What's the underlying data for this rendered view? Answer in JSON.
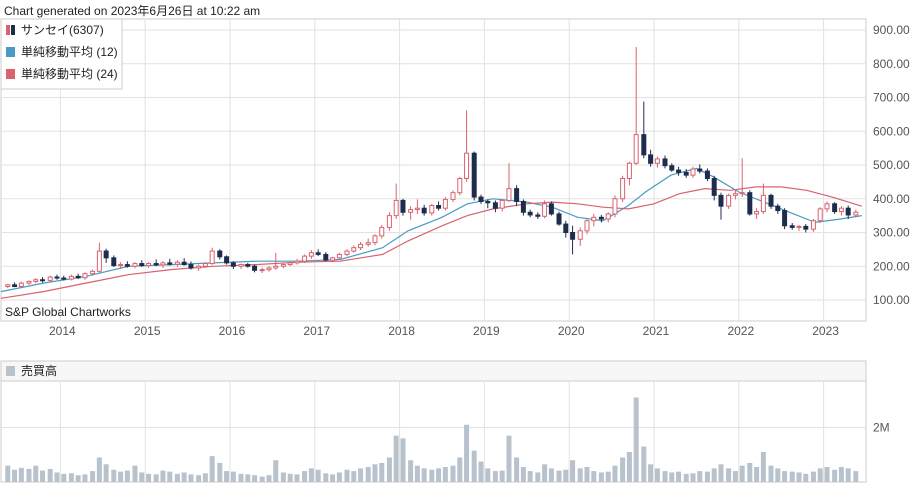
{
  "header": {
    "generated": "Chart generated on 2023年6月26日 at 10:22 am"
  },
  "credit": "S&P Global Chartworks",
  "colors": {
    "up": "#d9626f",
    "down": "#1f2d4d",
    "ma12": "#4a9bc4",
    "ma24": "#d9626f",
    "volume": "#b8c2cc",
    "grid": "#e2e2e2",
    "frame": "#cccccc"
  },
  "chart_data": [
    {
      "type": "candlestick",
      "legend_placement": "top-left",
      "legend": [
        {
          "name": "サンセイ(6307)",
          "swatch": "candle"
        },
        {
          "name": "単純移動平均 (12)",
          "swatch": "ma12"
        },
        {
          "name": "単純移動平均 (24)",
          "swatch": "ma24"
        }
      ],
      "ylim": [
        100,
        900
      ],
      "y_ticks": [
        "900.00",
        "800.00",
        "700.00",
        "600.00",
        "500.00",
        "400.00",
        "300.00",
        "200.00",
        "100.00"
      ],
      "x_ticks": [
        "2014",
        "2015",
        "2016",
        "2017",
        "2018",
        "2019",
        "2020",
        "2021",
        "2022",
        "2023"
      ],
      "x_range": [
        2013.3,
        2023.5
      ],
      "candles": [
        [
          2013.38,
          140,
          148,
          135,
          145
        ],
        [
          2013.46,
          145,
          152,
          138,
          140
        ],
        [
          2013.54,
          140,
          155,
          136,
          150
        ],
        [
          2013.63,
          150,
          158,
          145,
          155
        ],
        [
          2013.71,
          155,
          165,
          150,
          160
        ],
        [
          2013.79,
          160,
          168,
          152,
          158
        ],
        [
          2013.88,
          158,
          172,
          155,
          168
        ],
        [
          2013.96,
          168,
          175,
          160,
          165
        ],
        [
          2014.04,
          165,
          172,
          158,
          162
        ],
        [
          2014.13,
          162,
          175,
          158,
          170
        ],
        [
          2014.21,
          170,
          178,
          162,
          166
        ],
        [
          2014.29,
          166,
          182,
          160,
          178
        ],
        [
          2014.38,
          178,
          190,
          172,
          185
        ],
        [
          2014.46,
          185,
          270,
          180,
          245
        ],
        [
          2014.54,
          245,
          252,
          210,
          225
        ],
        [
          2014.63,
          225,
          232,
          198,
          202
        ],
        [
          2014.71,
          202,
          212,
          192,
          205
        ],
        [
          2014.79,
          205,
          215,
          196,
          200
        ],
        [
          2014.88,
          200,
          212,
          194,
          208
        ],
        [
          2014.96,
          208,
          218,
          198,
          202
        ],
        [
          2015.04,
          202,
          212,
          195,
          208
        ],
        [
          2015.13,
          208,
          220,
          200,
          204
        ],
        [
          2015.21,
          204,
          215,
          195,
          210
        ],
        [
          2015.29,
          210,
          222,
          202,
          206
        ],
        [
          2015.38,
          206,
          218,
          198,
          212
        ],
        [
          2015.46,
          212,
          224,
          202,
          205
        ],
        [
          2015.54,
          205,
          214,
          190,
          195
        ],
        [
          2015.63,
          195,
          205,
          186,
          200
        ],
        [
          2015.71,
          200,
          212,
          195,
          208
        ],
        [
          2015.79,
          208,
          255,
          204,
          245
        ],
        [
          2015.88,
          245,
          250,
          220,
          228
        ],
        [
          2015.96,
          228,
          232,
          205,
          210
        ],
        [
          2016.04,
          210,
          215,
          192,
          200
        ],
        [
          2016.13,
          200,
          208,
          192,
          205
        ],
        [
          2016.21,
          205,
          210,
          196,
          200
        ],
        [
          2016.29,
          200,
          205,
          182,
          188
        ],
        [
          2016.38,
          188,
          196,
          180,
          190
        ],
        [
          2016.46,
          190,
          200,
          184,
          195
        ],
        [
          2016.54,
          195,
          240,
          190,
          200
        ],
        [
          2016.63,
          200,
          208,
          194,
          205
        ],
        [
          2016.71,
          205,
          214,
          200,
          210
        ],
        [
          2016.79,
          210,
          222,
          205,
          215
        ],
        [
          2016.88,
          215,
          235,
          210,
          230
        ],
        [
          2016.96,
          230,
          248,
          222,
          240
        ],
        [
          2017.04,
          240,
          250,
          230,
          235
        ],
        [
          2017.13,
          235,
          242,
          215,
          218
        ],
        [
          2017.21,
          218,
          228,
          212,
          225
        ],
        [
          2017.29,
          225,
          240,
          220,
          235
        ],
        [
          2017.38,
          235,
          250,
          230,
          245
        ],
        [
          2017.46,
          245,
          262,
          240,
          255
        ],
        [
          2017.54,
          255,
          272,
          248,
          265
        ],
        [
          2017.63,
          265,
          282,
          258,
          270
        ],
        [
          2017.71,
          270,
          295,
          262,
          290
        ],
        [
          2017.79,
          290,
          322,
          282,
          315
        ],
        [
          2017.88,
          315,
          360,
          305,
          350
        ],
        [
          2017.96,
          350,
          445,
          340,
          395
        ],
        [
          2018.04,
          395,
          400,
          350,
          360
        ],
        [
          2018.13,
          360,
          378,
          338,
          368
        ],
        [
          2018.21,
          368,
          398,
          355,
          372
        ],
        [
          2018.29,
          372,
          382,
          350,
          358
        ],
        [
          2018.38,
          358,
          385,
          350,
          380
        ],
        [
          2018.46,
          380,
          392,
          365,
          372
        ],
        [
          2018.54,
          372,
          405,
          365,
          398
        ],
        [
          2018.63,
          398,
          425,
          390,
          418
        ],
        [
          2018.71,
          418,
          465,
          410,
          460
        ],
        [
          2018.79,
          460,
          662,
          450,
          535
        ],
        [
          2018.88,
          535,
          540,
          395,
          405
        ],
        [
          2018.96,
          405,
          412,
          385,
          392
        ],
        [
          2019.04,
          392,
          398,
          372,
          388
        ],
        [
          2019.13,
          388,
          395,
          360,
          372
        ],
        [
          2019.21,
          372,
          400,
          362,
          395
        ],
        [
          2019.29,
          395,
          505,
          390,
          430
        ],
        [
          2019.38,
          430,
          440,
          378,
          392
        ],
        [
          2019.46,
          392,
          398,
          350,
          360
        ],
        [
          2019.54,
          360,
          368,
          345,
          352
        ],
        [
          2019.63,
          352,
          360,
          340,
          348
        ],
        [
          2019.71,
          348,
          395,
          342,
          385
        ],
        [
          2019.79,
          385,
          392,
          350,
          355
        ],
        [
          2019.88,
          355,
          362,
          320,
          325
        ],
        [
          2019.96,
          325,
          335,
          285,
          300
        ],
        [
          2020.04,
          300,
          320,
          235,
          280
        ],
        [
          2020.13,
          280,
          315,
          260,
          305
        ],
        [
          2020.21,
          305,
          340,
          295,
          335
        ],
        [
          2020.29,
          335,
          355,
          318,
          345
        ],
        [
          2020.38,
          345,
          352,
          330,
          340
        ],
        [
          2020.46,
          340,
          360,
          330,
          355
        ],
        [
          2020.54,
          355,
          410,
          345,
          400
        ],
        [
          2020.63,
          400,
          468,
          390,
          460
        ],
        [
          2020.71,
          460,
          510,
          440,
          505
        ],
        [
          2020.79,
          505,
          850,
          500,
          590
        ],
        [
          2020.88,
          590,
          688,
          520,
          530
        ],
        [
          2020.96,
          530,
          545,
          495,
          505
        ],
        [
          2021.04,
          505,
          525,
          492,
          518
        ],
        [
          2021.13,
          518,
          528,
          490,
          498
        ],
        [
          2021.21,
          498,
          505,
          480,
          485
        ],
        [
          2021.29,
          485,
          495,
          468,
          478
        ],
        [
          2021.38,
          478,
          488,
          462,
          470
        ],
        [
          2021.46,
          470,
          495,
          462,
          488
        ],
        [
          2021.54,
          488,
          502,
          475,
          482
        ],
        [
          2021.63,
          482,
          490,
          452,
          460
        ],
        [
          2021.71,
          460,
          468,
          395,
          410
        ],
        [
          2021.79,
          410,
          418,
          338,
          378
        ],
        [
          2021.88,
          378,
          415,
          370,
          410
        ],
        [
          2021.96,
          410,
          425,
          398,
          415
        ],
        [
          2022.04,
          415,
          520,
          405,
          418
        ],
        [
          2022.13,
          418,
          425,
          350,
          355
        ],
        [
          2022.21,
          355,
          372,
          340,
          362
        ],
        [
          2022.29,
          362,
          445,
          355,
          410
        ],
        [
          2022.38,
          410,
          415,
          370,
          378
        ],
        [
          2022.46,
          378,
          385,
          355,
          365
        ],
        [
          2022.54,
          365,
          372,
          310,
          320
        ],
        [
          2022.63,
          320,
          328,
          308,
          315
        ],
        [
          2022.71,
          315,
          322,
          305,
          318
        ],
        [
          2022.79,
          318,
          325,
          300,
          310
        ],
        [
          2022.88,
          310,
          340,
          302,
          335
        ],
        [
          2022.96,
          335,
          375,
          328,
          370
        ],
        [
          2023.04,
          370,
          392,
          360,
          385
        ],
        [
          2023.13,
          385,
          390,
          355,
          362
        ],
        [
          2023.21,
          362,
          378,
          350,
          372
        ],
        [
          2023.29,
          372,
          380,
          340,
          352
        ],
        [
          2023.38,
          352,
          368,
          345,
          360
        ]
      ],
      "series": [
        {
          "name": "単純移動平均 (12)",
          "color_key": "ma12",
          "x": [
            2013.3,
            2013.8,
            2014.3,
            2014.8,
            2015.3,
            2015.8,
            2016.3,
            2016.8,
            2017.3,
            2017.8,
            2018.1,
            2018.5,
            2018.8,
            2019.1,
            2019.5,
            2019.8,
            2020.1,
            2020.4,
            2020.7,
            2020.9,
            2021.2,
            2021.5,
            2021.7,
            2022.0,
            2022.3,
            2022.6,
            2022.9,
            2023.2,
            2023.45
          ],
          "values": [
            125,
            150,
            170,
            200,
            205,
            210,
            215,
            215,
            220,
            255,
            305,
            345,
            385,
            400,
            390,
            375,
            345,
            335,
            380,
            420,
            470,
            490,
            465,
            420,
            390,
            360,
            330,
            340,
            350
          ]
        },
        {
          "name": "単純移動平均 (24)",
          "color_key": "ma24",
          "x": [
            2013.3,
            2013.8,
            2014.3,
            2014.8,
            2015.3,
            2015.8,
            2016.3,
            2016.8,
            2017.3,
            2017.8,
            2018.1,
            2018.5,
            2018.8,
            2019.1,
            2019.5,
            2019.8,
            2020.1,
            2020.4,
            2020.7,
            2021.0,
            2021.3,
            2021.6,
            2021.9,
            2022.2,
            2022.5,
            2022.8,
            2023.1,
            2023.45
          ],
          "values": [
            105,
            125,
            150,
            175,
            190,
            200,
            205,
            212,
            215,
            235,
            275,
            320,
            350,
            370,
            385,
            390,
            385,
            375,
            370,
            385,
            415,
            430,
            425,
            435,
            435,
            425,
            405,
            378
          ]
        }
      ]
    },
    {
      "type": "bar",
      "title": "売買高",
      "y_ticks": [
        "2M"
      ],
      "ylim": [
        0,
        4000000
      ],
      "x_range": [
        2013.3,
        2023.5
      ],
      "x": [
        2013.38,
        2013.46,
        2013.54,
        2013.63,
        2013.71,
        2013.79,
        2013.88,
        2013.96,
        2014.04,
        2014.13,
        2014.21,
        2014.29,
        2014.38,
        2014.46,
        2014.54,
        2014.63,
        2014.71,
        2014.79,
        2014.88,
        2014.96,
        2015.04,
        2015.13,
        2015.21,
        2015.29,
        2015.38,
        2015.46,
        2015.54,
        2015.63,
        2015.71,
        2015.79,
        2015.88,
        2015.96,
        2016.04,
        2016.13,
        2016.21,
        2016.29,
        2016.38,
        2016.46,
        2016.54,
        2016.63,
        2016.71,
        2016.79,
        2016.88,
        2016.96,
        2017.04,
        2017.13,
        2017.21,
        2017.29,
        2017.38,
        2017.46,
        2017.54,
        2017.63,
        2017.71,
        2017.79,
        2017.88,
        2017.96,
        2018.04,
        2018.13,
        2018.21,
        2018.29,
        2018.38,
        2018.46,
        2018.54,
        2018.63,
        2018.71,
        2018.79,
        2018.88,
        2018.96,
        2019.04,
        2019.13,
        2019.21,
        2019.29,
        2019.38,
        2019.46,
        2019.54,
        2019.63,
        2019.71,
        2019.79,
        2019.88,
        2019.96,
        2020.04,
        2020.13,
        2020.21,
        2020.29,
        2020.38,
        2020.46,
        2020.54,
        2020.63,
        2020.71,
        2020.79,
        2020.88,
        2020.96,
        2021.04,
        2021.13,
        2021.21,
        2021.29,
        2021.38,
        2021.46,
        2021.54,
        2021.63,
        2021.71,
        2021.79,
        2021.88,
        2021.96,
        2022.04,
        2022.13,
        2022.21,
        2022.29,
        2022.38,
        2022.46,
        2022.54,
        2022.63,
        2022.71,
        2022.79,
        2022.88,
        2022.96,
        2023.04,
        2023.13,
        2023.21,
        2023.29,
        2023.38
      ],
      "values": [
        600000,
        450000,
        520000,
        480000,
        600000,
        420000,
        480000,
        350000,
        300000,
        320000,
        250000,
        280000,
        400000,
        900000,
        650000,
        450000,
        380000,
        420000,
        600000,
        350000,
        300000,
        280000,
        420000,
        380000,
        300000,
        350000,
        280000,
        250000,
        320000,
        950000,
        700000,
        400000,
        380000,
        300000,
        280000,
        250000,
        200000,
        250000,
        800000,
        350000,
        300000,
        280000,
        400000,
        500000,
        450000,
        320000,
        280000,
        350000,
        450000,
        400000,
        500000,
        550000,
        650000,
        700000,
        900000,
        1700000,
        1600000,
        800000,
        600000,
        500000,
        450000,
        500000,
        550000,
        600000,
        900000,
        2100000,
        1150000,
        750000,
        500000,
        400000,
        420000,
        1700000,
        900000,
        550000,
        400000,
        350000,
        650000,
        500000,
        420000,
        450000,
        800000,
        500000,
        550000,
        400000,
        350000,
        380000,
        600000,
        900000,
        1100000,
        3100000,
        1300000,
        650000,
        500000,
        400000,
        350000,
        380000,
        300000,
        320000,
        400000,
        380000,
        500000,
        650000,
        500000,
        400000,
        600000,
        700000,
        550000,
        1100000,
        600000,
        500000,
        400000,
        380000,
        350000,
        300000,
        380000,
        500000,
        550000,
        450000,
        550000,
        500000,
        400000
      ]
    }
  ]
}
